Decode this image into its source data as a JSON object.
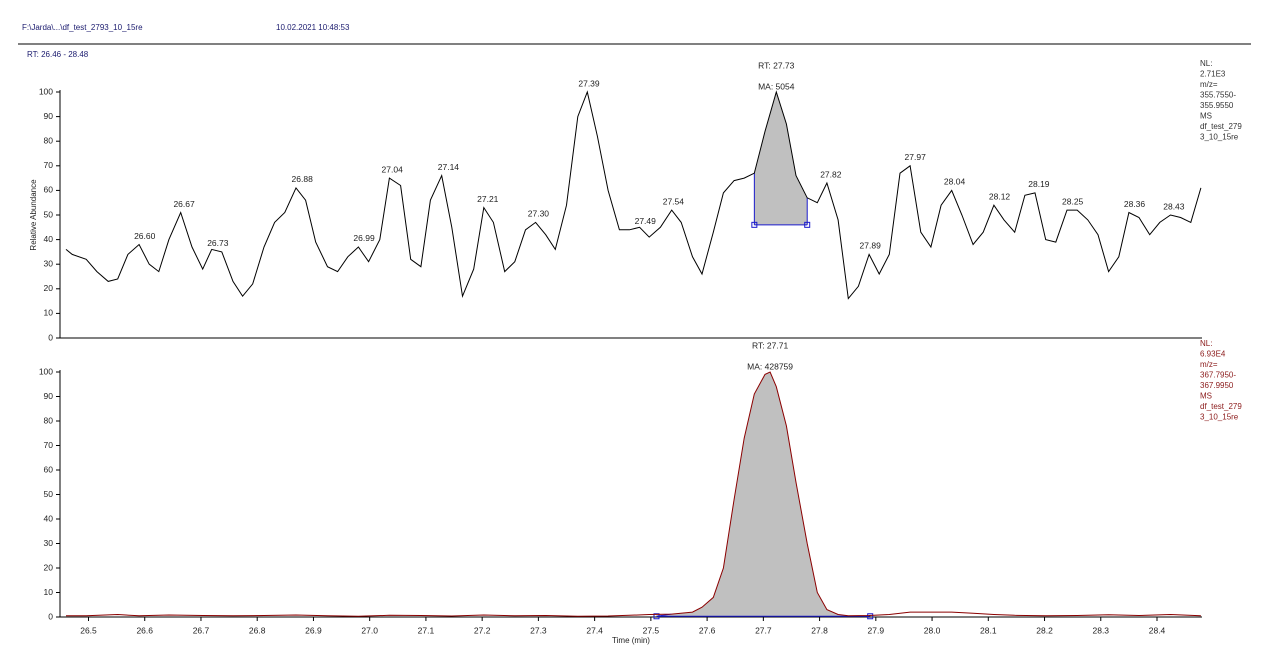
{
  "header": {
    "file": "F:\\Jarda\\...\\df_test_2793_10_15re",
    "date": "10.02.2021 10:48:53",
    "range": "RT: 26.46 - 28.48"
  },
  "chart_data": [
    {
      "type": "line",
      "ylabel": "Relative Abundance",
      "color": "#000000",
      "xlim": [
        26.46,
        28.48
      ],
      "ylim": [
        0,
        100
      ],
      "yticks": [
        0,
        10,
        20,
        30,
        40,
        50,
        60,
        70,
        80,
        90,
        100
      ],
      "x": [
        26.46,
        26.471,
        26.496,
        26.515,
        26.535,
        26.552,
        26.57,
        26.59,
        26.608,
        26.625,
        26.643,
        26.664,
        26.684,
        26.703,
        26.719,
        26.737,
        26.757,
        26.774,
        26.792,
        26.812,
        26.831,
        26.849,
        26.869,
        26.886,
        26.904,
        26.925,
        26.943,
        26.961,
        26.98,
        26.998,
        27.018,
        27.035,
        27.055,
        27.073,
        27.091,
        27.108,
        27.128,
        27.146,
        27.165,
        27.185,
        27.203,
        27.22,
        27.24,
        27.258,
        27.277,
        27.295,
        27.313,
        27.33,
        27.35,
        27.37,
        27.387,
        27.405,
        27.424,
        27.444,
        27.462,
        27.48,
        27.497,
        27.517,
        27.537,
        27.554,
        27.574,
        27.591,
        27.611,
        27.629,
        27.648,
        27.666,
        27.684,
        27.703,
        27.723,
        27.741,
        27.758,
        27.778,
        27.796,
        27.813,
        27.833,
        27.851,
        27.869,
        27.888,
        27.906,
        27.924,
        27.943,
        27.961,
        27.98,
        27.998,
        28.016,
        28.035,
        28.053,
        28.073,
        28.091,
        28.11,
        28.128,
        28.147,
        28.165,
        28.183,
        28.202,
        28.22,
        28.24,
        28.258,
        28.277,
        28.295,
        28.314,
        28.332,
        28.35,
        28.368,
        28.387,
        28.405,
        28.424,
        28.442,
        28.46,
        28.478
      ],
      "values": [
        36,
        34,
        32,
        27,
        23,
        24,
        34,
        38,
        30,
        27,
        40,
        51,
        37,
        28,
        36,
        35,
        23,
        17,
        22,
        37,
        47,
        51,
        61,
        56,
        39,
        29,
        27,
        33,
        37,
        31,
        40,
        65,
        62,
        32,
        29,
        56,
        66,
        45,
        17,
        28,
        53,
        47,
        27,
        31,
        44,
        47,
        42,
        36,
        54,
        90,
        100,
        82,
        60,
        44,
        44,
        45,
        41,
        45,
        52,
        47,
        33,
        26,
        43,
        59,
        64,
        65,
        67,
        84,
        100,
        87,
        66,
        57,
        55,
        63,
        48,
        16,
        21,
        34,
        26,
        34,
        67,
        70,
        43,
        37,
        54,
        60,
        50,
        38,
        43,
        54,
        48,
        43,
        58,
        59,
        40,
        39,
        52,
        52,
        48,
        42,
        27,
        33,
        51,
        49,
        42,
        47,
        50,
        49,
        47,
        61
      ],
      "peak_labels": [
        {
          "label": "26.60",
          "x": 26.6,
          "y": 38
        },
        {
          "label": "26.67",
          "x": 26.67,
          "y": 51
        },
        {
          "label": "26.73",
          "x": 26.73,
          "y": 35
        },
        {
          "label": "26.88",
          "x": 26.88,
          "y": 61
        },
        {
          "label": "26.99",
          "x": 26.99,
          "y": 37
        },
        {
          "label": "27.04",
          "x": 27.04,
          "y": 65
        },
        {
          "label": "27.14",
          "x": 27.14,
          "y": 66
        },
        {
          "label": "27.21",
          "x": 27.21,
          "y": 53
        },
        {
          "label": "27.30",
          "x": 27.3,
          "y": 47
        },
        {
          "label": "27.39",
          "x": 27.39,
          "y": 100
        },
        {
          "label": "27.49",
          "x": 27.49,
          "y": 44
        },
        {
          "label": "27.54",
          "x": 27.54,
          "y": 52
        },
        {
          "label": "27.82",
          "x": 27.82,
          "y": 63
        },
        {
          "label": "27.89",
          "x": 27.89,
          "y": 34
        },
        {
          "label": "27.97",
          "x": 27.97,
          "y": 70
        },
        {
          "label": "28.04",
          "x": 28.04,
          "y": 60
        },
        {
          "label": "28.12",
          "x": 28.12,
          "y": 54
        },
        {
          "label": "28.19",
          "x": 28.19,
          "y": 59
        },
        {
          "label": "28.25",
          "x": 28.25,
          "y": 52
        },
        {
          "label": "28.36",
          "x": 28.36,
          "y": 51
        },
        {
          "label": "28.43",
          "x": 28.43,
          "y": 50
        }
      ],
      "peak": {
        "rt_label": "RT: 27.73",
        "area_label": "MA: 5054",
        "start": 27.684,
        "end": 27.778,
        "baseline": [
          46,
          46
        ]
      },
      "info": [
        "NL:",
        "2.71E3",
        "m/z=",
        "355.7550-",
        "355.9550",
        "MS",
        "df_test_279",
        "3_10_15re"
      ],
      "info_color": "#333333"
    },
    {
      "type": "line",
      "xlabel": "Time (min)",
      "color": "#8b0000",
      "xlim": [
        26.46,
        28.48
      ],
      "ylim": [
        0,
        100
      ],
      "yticks": [
        0,
        10,
        20,
        30,
        40,
        50,
        60,
        70,
        80,
        90,
        100
      ],
      "xticks": [
        26.5,
        26.6,
        26.7,
        26.8,
        26.9,
        {
          "value": 27,
          "label": "27.0"
        },
        27.1,
        27.2,
        27.3,
        27.4,
        27.5,
        27.6,
        27.7,
        27.8,
        27.9,
        {
          "value": 28,
          "label": "28.0"
        },
        28.1,
        28.2,
        28.3,
        28.4
      ],
      "x": [
        26.46,
        26.496,
        26.552,
        26.59,
        26.643,
        26.703,
        26.757,
        26.812,
        26.869,
        26.925,
        26.98,
        27.035,
        27.091,
        27.146,
        27.203,
        27.258,
        27.313,
        27.37,
        27.424,
        27.462,
        27.497,
        27.537,
        27.574,
        27.591,
        27.611,
        27.629,
        27.648,
        27.666,
        27.684,
        27.703,
        27.712,
        27.723,
        27.741,
        27.758,
        27.778,
        27.796,
        27.813,
        27.833,
        27.851,
        27.888,
        27.924,
        27.961,
        27.998,
        28.035,
        28.073,
        28.11,
        28.147,
        28.202,
        28.258,
        28.314,
        28.368,
        28.424,
        28.478
      ],
      "values": [
        0.5,
        0.5,
        1,
        0.5,
        0.8,
        0.6,
        0.5,
        0.6,
        0.8,
        0.5,
        0.3,
        0.7,
        0.6,
        0.4,
        0.8,
        0.5,
        0.6,
        0.3,
        0.4,
        0.7,
        1,
        1.2,
        2,
        4,
        8,
        20,
        48,
        73,
        91,
        99,
        100,
        94,
        78,
        55,
        30,
        10,
        3,
        1,
        0.5,
        0.6,
        1,
        2,
        2,
        2,
        1.5,
        1,
        0.7,
        0.5,
        0.6,
        0.9,
        0.6,
        1,
        0.5
      ],
      "peak": {
        "rt_label": "RT: 27.71",
        "area_label": "MA: 428759",
        "start": 27.51,
        "end": 27.89,
        "baseline": [
          0.3,
          0.3
        ]
      },
      "info": [
        "NL:",
        "6.93E4",
        "m/z=",
        "367.7950-",
        "367.9950",
        "MS",
        "df_test_279",
        "3_10_15re"
      ],
      "info_color": "#8b1a1a"
    }
  ]
}
